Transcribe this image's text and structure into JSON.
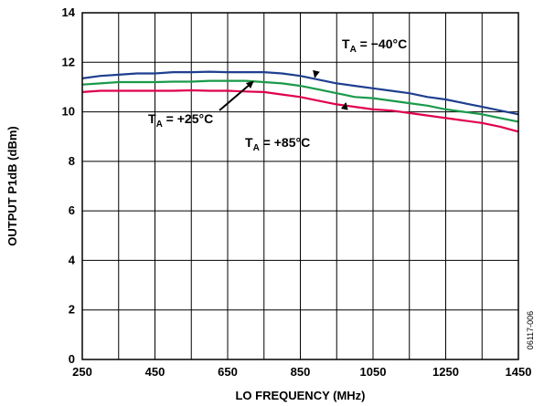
{
  "chart_data": {
    "type": "line",
    "xlabel": "LO FREQUENCY (MHz)",
    "ylabel": "OUTPUT P1dB (dBm)",
    "xlim": [
      250,
      1450
    ],
    "ylim": [
      0,
      14
    ],
    "xticks": [
      250,
      450,
      650,
      850,
      1050,
      1250,
      1450
    ],
    "yticks": [
      0,
      2,
      4,
      6,
      8,
      10,
      12,
      14
    ],
    "x_minor_step": 100,
    "grid": true,
    "x": [
      250,
      300,
      350,
      400,
      450,
      500,
      550,
      600,
      650,
      700,
      750,
      800,
      850,
      900,
      950,
      1000,
      1050,
      1100,
      1150,
      1200,
      1250,
      1300,
      1350,
      1400,
      1450
    ],
    "series": [
      {
        "color": "#1f3f8f",
        "values": [
          11.35,
          11.45,
          11.5,
          11.55,
          11.55,
          11.6,
          11.6,
          11.62,
          11.6,
          11.6,
          11.6,
          11.55,
          11.45,
          11.3,
          11.15,
          11.05,
          10.95,
          10.85,
          10.75,
          10.6,
          10.5,
          10.35,
          10.2,
          10.05,
          9.9
        ]
      },
      {
        "color": "#1a9a4a",
        "values": [
          11.1,
          11.15,
          11.2,
          11.2,
          11.2,
          11.22,
          11.22,
          11.25,
          11.25,
          11.25,
          11.2,
          11.15,
          11.05,
          10.9,
          10.75,
          10.6,
          10.55,
          10.45,
          10.35,
          10.25,
          10.1,
          10.0,
          9.9,
          9.75,
          9.6
        ]
      },
      {
        "color": "#e0004d",
        "values": [
          10.8,
          10.85,
          10.85,
          10.85,
          10.85,
          10.85,
          10.87,
          10.85,
          10.85,
          10.82,
          10.8,
          10.7,
          10.6,
          10.45,
          10.3,
          10.2,
          10.1,
          10.05,
          9.95,
          9.85,
          9.75,
          9.65,
          9.55,
          9.4,
          9.2
        ]
      }
    ],
    "annotations": [
      {
        "sym": "T",
        "sub": "A",
        "text": " = −40°C",
        "arrow_to": [
          890,
          11.4
        ]
      },
      {
        "sym": "T",
        "sub": "A",
        "text": " = +25°C",
        "arrow_to": [
          720,
          11.22
        ]
      },
      {
        "sym": "T",
        "sub": "A",
        "text": " = +85°C",
        "arrow_to": [
          975,
          10.35
        ]
      }
    ],
    "figure_id": "06117-006"
  }
}
